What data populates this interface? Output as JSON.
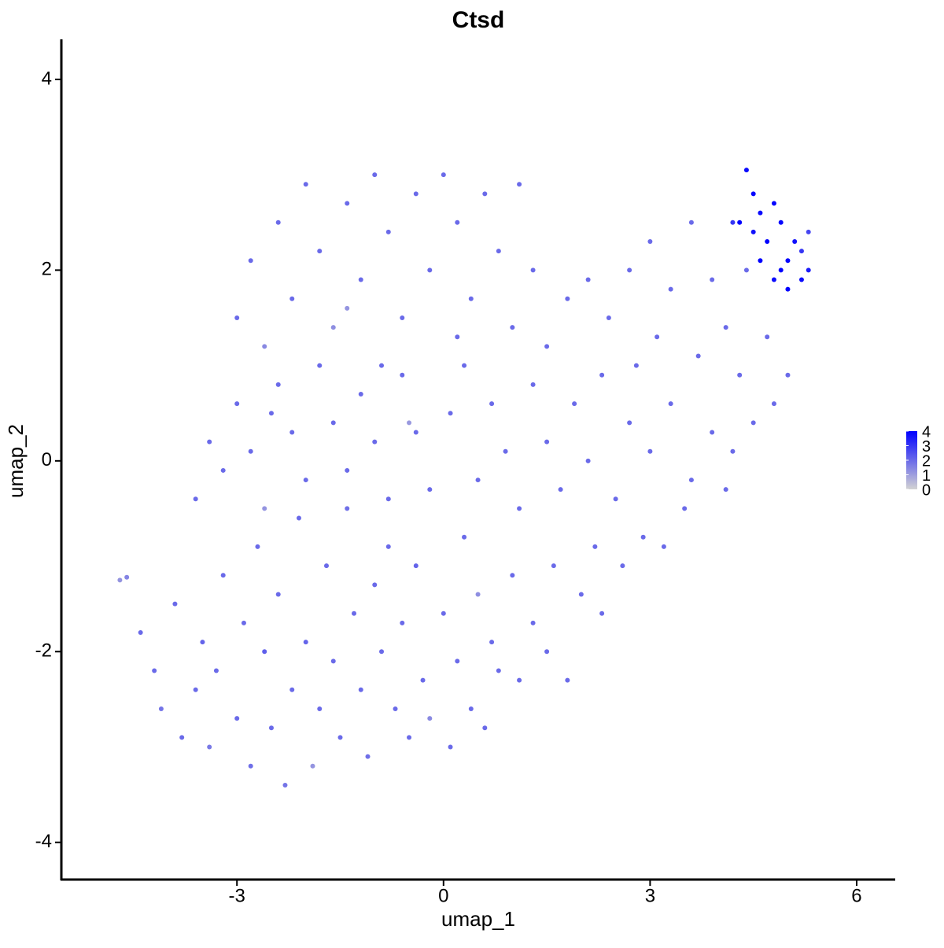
{
  "chart_data": {
    "type": "scatter",
    "title": "Ctsd",
    "x_label": "umap_1",
    "y_label": "umap_2",
    "x": [
      -4.7,
      -4.6,
      -4.4,
      -4.2,
      -4.1,
      -3.9,
      -3.8,
      -3.6,
      -3.5,
      -3.4,
      -3.3,
      -3.2,
      -3.0,
      -2.9,
      -2.8,
      -2.7,
      -2.6,
      -2.5,
      -2.4,
      -2.3,
      -2.2,
      -2.1,
      -2.0,
      -1.9,
      -1.8,
      -1.7,
      -1.6,
      -1.5,
      -1.4,
      -1.3,
      -1.2,
      -1.1,
      -1.0,
      -0.9,
      -0.8,
      -0.7,
      -0.6,
      -0.5,
      -0.4,
      -0.3,
      -0.2,
      0,
      0.1,
      0.2,
      0.3,
      0.4,
      0.5,
      0.6,
      0.7,
      0.8,
      1.0,
      1.1,
      1.3,
      1.5,
      1.6,
      1.8,
      2.0,
      2.3,
      2.6,
      2.9,
      3.2,
      3.5,
      -3.6,
      -3.4,
      -3.2,
      -3.0,
      -2.8,
      -2.6,
      -2.4,
      -2.2,
      -2.0,
      -1.8,
      -1.6,
      -1.4,
      -1.2,
      -1.0,
      -0.8,
      -0.6,
      -0.4,
      -0.2,
      0.1,
      0.3,
      0.5,
      0.7,
      0.9,
      1.1,
      1.3,
      1.5,
      1.7,
      1.9,
      2.1,
      2.3,
      2.5,
      2.7,
      3.0,
      3.3,
      3.6,
      3.9,
      4.2,
      4.5,
      4.8,
      5.0,
      4.1,
      2.2,
      -3.0,
      -2.8,
      -2.6,
      -2.4,
      -2.2,
      -2.0,
      -1.8,
      -1.6,
      -1.4,
      -1.2,
      -1.0,
      -0.8,
      -0.6,
      -0.4,
      -0.2,
      0.0,
      0.2,
      0.4,
      0.6,
      0.8,
      1.0,
      1.1,
      1.3,
      1.5,
      1.8,
      2.1,
      2.4,
      2.7,
      3.0,
      3.3,
      3.6,
      3.9,
      4.1,
      4.4,
      4.7,
      3.1,
      2.8,
      4.3,
      3.7,
      0.2,
      -0.9,
      -2.5,
      -1.4,
      -0.5,
      4.4,
      4.5,
      4.3,
      4.6,
      4.7,
      4.8,
      4.9,
      5.0,
      5.1,
      5.2,
      4.6,
      4.9,
      5.3,
      4.5,
      5.0,
      4.8,
      5.3,
      5.2,
      4.2
    ],
    "values": [
      -1.25,
      -1.22,
      -1.8,
      -2.2,
      -2.6,
      -1.5,
      -2.9,
      -2.4,
      -1.9,
      -3.0,
      -2.2,
      -1.2,
      -2.7,
      -1.7,
      -3.2,
      -0.9,
      -2.0,
      -2.8,
      -1.4,
      -3.4,
      -2.4,
      -0.6,
      -1.9,
      -3.2,
      -2.6,
      -1.1,
      -2.1,
      -2.9,
      -0.5,
      -1.6,
      -2.4,
      -3.1,
      -1.3,
      -2.0,
      -0.9,
      -2.6,
      -1.7,
      -2.9,
      -1.1,
      -2.3,
      -2.7,
      -1.6,
      -3.0,
      -2.1,
      -0.8,
      -2.6,
      -1.4,
      -2.8,
      -1.9,
      -2.2,
      -1.2,
      -2.3,
      -1.7,
      -2.0,
      -1.1,
      -2.3,
      -1.4,
      -1.6,
      -1.1,
      -0.8,
      -0.9,
      -0.5,
      -0.4,
      0.2,
      -0.1,
      0.6,
      0.1,
      -0.5,
      0.8,
      0.3,
      -0.2,
      1.0,
      0.4,
      -0.1,
      0.7,
      0.2,
      -0.4,
      0.9,
      0.3,
      -0.3,
      0.5,
      1.0,
      -0.2,
      0.6,
      0.1,
      -0.5,
      0.8,
      0.2,
      -0.3,
      0.6,
      0.0,
      0.9,
      -0.4,
      0.4,
      0.1,
      0.6,
      -0.2,
      0.3,
      0.1,
      0.4,
      0.6,
      0.9,
      -0.3,
      -0.9,
      1.5,
      2.1,
      1.2,
      2.5,
      1.7,
      2.9,
      2.2,
      1.4,
      2.7,
      1.9,
      3.0,
      2.4,
      1.5,
      2.8,
      2.0,
      3.0,
      2.5,
      1.7,
      2.8,
      2.2,
      1.4,
      2.9,
      2.0,
      1.2,
      1.7,
      1.9,
      1.5,
      2.0,
      2.3,
      1.8,
      2.5,
      1.9,
      1.4,
      2.0,
      1.3,
      1.3,
      1.0,
      0.9,
      1.1,
      1.3,
      1.0,
      0.5,
      1.6,
      0.4,
      3.05,
      2.8,
      2.5,
      2.6,
      2.3,
      2.7,
      2.0,
      1.8,
      2.3,
      1.9,
      2.1,
      2.5,
      2.0,
      2.4,
      2.1,
      1.9,
      2.4,
      2.2,
      2.5
    ],
    "color_values": [
      1.2,
      1.5,
      2,
      2,
      1.8,
      2,
      2,
      2,
      2.1,
      1.7,
      2,
      2,
      2,
      2,
      1.9,
      2,
      2.2,
      2,
      2,
      1.8,
      2,
      2,
      2.1,
      1.2,
      2,
      2,
      2,
      2,
      1.9,
      2,
      2,
      1.9,
      2,
      2,
      2,
      2,
      2,
      2,
      2.1,
      2,
      1.4,
      2,
      2,
      2,
      2,
      2,
      1.3,
      2,
      2,
      2,
      2,
      2,
      2,
      2,
      2,
      2,
      2,
      2,
      2,
      2,
      2,
      2,
      2,
      2,
      2,
      2,
      2,
      1.2,
      2,
      2,
      2,
      2,
      2,
      2,
      2,
      2,
      2,
      2,
      2,
      2,
      2,
      2,
      2,
      2,
      2,
      2,
      2,
      2,
      2,
      2,
      2,
      2,
      2,
      2,
      2,
      2,
      2,
      2,
      2,
      2,
      2,
      2,
      2,
      2,
      2,
      2,
      1.4,
      2,
      2,
      2,
      2,
      1.3,
      2,
      2,
      2,
      2,
      2,
      2,
      2,
      2,
      2,
      2,
      2,
      2,
      2,
      2,
      2,
      2,
      2,
      2,
      2,
      2,
      2,
      2,
      2,
      2,
      2,
      2,
      2,
      2,
      2,
      2,
      2,
      2,
      2,
      2,
      1.2,
      1.1,
      3.8,
      3.9,
      4,
      3.8,
      4,
      3.9,
      4,
      4,
      3.7,
      3.8,
      4,
      3.9,
      3.5,
      3.7,
      3.9,
      3.8,
      2.7,
      3,
      3
    ],
    "xlim": [
      -5.55,
      6.56
    ],
    "ylim": [
      -4.39,
      4.42
    ],
    "xticks": [
      -3,
      0,
      3,
      6
    ],
    "yticks": [
      -4,
      -2,
      0,
      2,
      4
    ],
    "colorbar": {
      "lim": [
        0,
        4
      ],
      "ticks": [
        0,
        1,
        2,
        3,
        4
      ],
      "colors": [
        "#d3d3d3",
        "#0000ff"
      ]
    },
    "grid": false
  }
}
